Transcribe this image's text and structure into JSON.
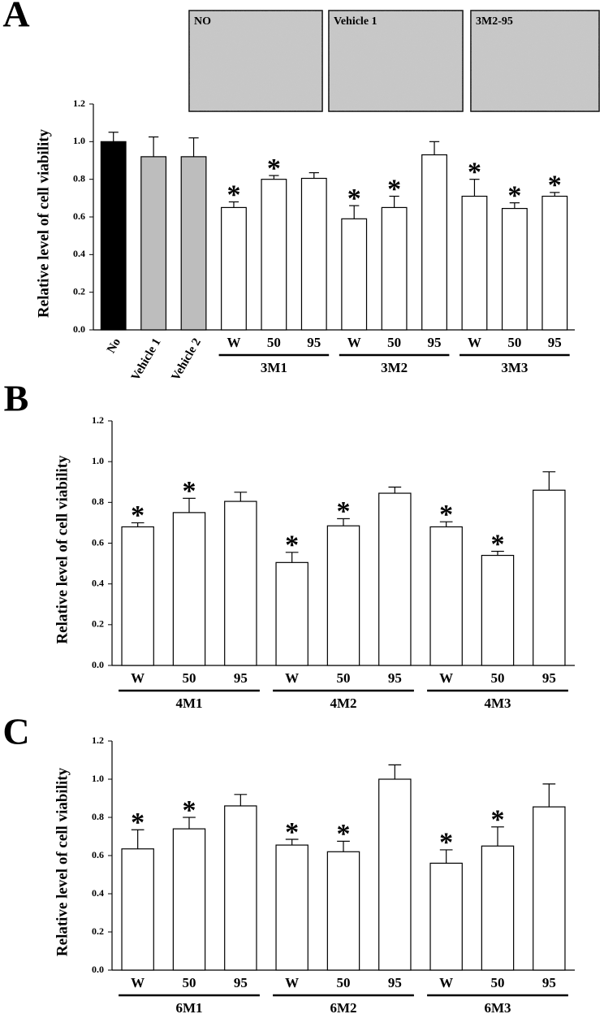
{
  "chart_data": [
    {
      "type": "bar",
      "panel": "A",
      "ylabel": "Relative level of cell viability",
      "insets": [
        "NO",
        "Vehicle 1",
        "3M2-95"
      ],
      "categories": [
        "No",
        "Vehicle 1",
        "Vehicle 2",
        "W",
        "50",
        "95",
        "W",
        "50",
        "95",
        "W",
        "50",
        "95"
      ],
      "groups": [
        null,
        null,
        null,
        "3M1",
        "3M1",
        "3M1",
        "3M2",
        "3M2",
        "3M2",
        "3M3",
        "3M3",
        "3M3"
      ],
      "values": [
        1.0,
        0.92,
        0.92,
        0.65,
        0.8,
        0.805,
        0.59,
        0.65,
        0.93,
        0.71,
        0.645,
        0.71
      ],
      "errors": [
        0.05,
        0.105,
        0.1,
        0.03,
        0.02,
        0.03,
        0.07,
        0.06,
        0.07,
        0.09,
        0.03,
        0.02
      ],
      "colors": [
        "#000000",
        "#bdbdbd",
        "#bdbdbd",
        "#ffffff",
        "#ffffff",
        "#ffffff",
        "#ffffff",
        "#ffffff",
        "#ffffff",
        "#ffffff",
        "#ffffff",
        "#ffffff"
      ],
      "significance": [
        null,
        null,
        null,
        "*",
        "*",
        null,
        "*",
        "*",
        null,
        "*",
        "*",
        "*"
      ],
      "ylim": [
        0,
        1.2
      ],
      "yticks": [
        {
          "value": 0,
          "label": "0.0"
        },
        0.2,
        0.4,
        0.6,
        0.8,
        {
          "value": 1,
          "label": "1.0"
        },
        1.2
      ]
    },
    {
      "type": "bar",
      "panel": "B",
      "ylabel": "Relative level of cell viability",
      "categories": [
        "W",
        "50",
        "95",
        "W",
        "50",
        "95",
        "W",
        "50",
        "95"
      ],
      "groups": [
        "4M1",
        "4M1",
        "4M1",
        "4M2",
        "4M2",
        "4M2",
        "4M3",
        "4M3",
        "4M3"
      ],
      "values": [
        0.68,
        0.75,
        0.805,
        0.505,
        0.685,
        0.845,
        0.68,
        0.54,
        0.86
      ],
      "errors": [
        0.02,
        0.07,
        0.045,
        0.05,
        0.035,
        0.03,
        0.025,
        0.02,
        0.09
      ],
      "colors": [
        "#ffffff",
        "#ffffff",
        "#ffffff",
        "#ffffff",
        "#ffffff",
        "#ffffff",
        "#ffffff",
        "#ffffff",
        "#ffffff"
      ],
      "significance": [
        "*",
        "*",
        null,
        "*",
        "*",
        null,
        "*",
        "*",
        null
      ],
      "ylim": [
        0,
        1.2
      ],
      "yticks": [
        {
          "value": 0,
          "label": "0.0"
        },
        0.2,
        0.4,
        0.6,
        0.8,
        {
          "value": 1,
          "label": "1.0"
        },
        1.2
      ]
    },
    {
      "type": "bar",
      "panel": "C",
      "ylabel": "Relative level of cell viability",
      "categories": [
        "W",
        "50",
        "95",
        "W",
        "50",
        "95",
        "W",
        "50",
        "95"
      ],
      "groups": [
        "6M1",
        "6M1",
        "6M1",
        "6M2",
        "6M2",
        "6M2",
        "6M3",
        "6M3",
        "6M3"
      ],
      "values": [
        0.635,
        0.74,
        0.86,
        0.655,
        0.62,
        1.0,
        0.56,
        0.65,
        0.855
      ],
      "errors": [
        0.1,
        0.06,
        0.06,
        0.03,
        0.055,
        0.075,
        0.07,
        0.1,
        0.12
      ],
      "colors": [
        "#ffffff",
        "#ffffff",
        "#ffffff",
        "#ffffff",
        "#ffffff",
        "#ffffff",
        "#ffffff",
        "#ffffff",
        "#ffffff"
      ],
      "significance": [
        "*",
        "*",
        null,
        "*",
        "*",
        null,
        "*",
        "*",
        null
      ],
      "ylim": [
        0,
        1.2
      ],
      "yticks": [
        {
          "value": 0,
          "label": "0.0"
        },
        0.2,
        0.4,
        0.6,
        0.8,
        {
          "value": 1,
          "label": "1.0"
        },
        1.2
      ]
    }
  ]
}
